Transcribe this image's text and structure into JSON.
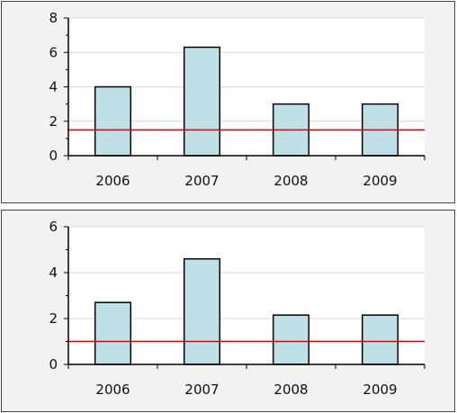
{
  "chart_data": [
    {
      "type": "bar",
      "categories": [
        "2006",
        "2007",
        "2008",
        "2009"
      ],
      "values": [
        4,
        6.3,
        3,
        3
      ],
      "reference_line": 1.5,
      "ylim": [
        0,
        8
      ],
      "yticks": [
        0,
        2,
        4,
        6,
        8
      ],
      "grid": true,
      "colors": {
        "bar": "#bfe0e6",
        "bar_border": "#000000",
        "reference_line": "#e00000",
        "plot_bg": "#ffffff",
        "panel_bg": "#f2f2f2",
        "grid": "#d9d9d9"
      }
    },
    {
      "type": "bar",
      "categories": [
        "2006",
        "2007",
        "2008",
        "2009"
      ],
      "values": [
        2.7,
        4.6,
        2.15,
        2.15
      ],
      "reference_line": 1.0,
      "ylim": [
        0,
        6
      ],
      "yticks": [
        0,
        2,
        4,
        6
      ],
      "grid": true,
      "colors": {
        "bar": "#bfe0e6",
        "bar_border": "#000000",
        "reference_line": "#e00000",
        "plot_bg": "#ffffff",
        "panel_bg": "#f2f2f2",
        "grid": "#d9d9d9"
      }
    }
  ]
}
